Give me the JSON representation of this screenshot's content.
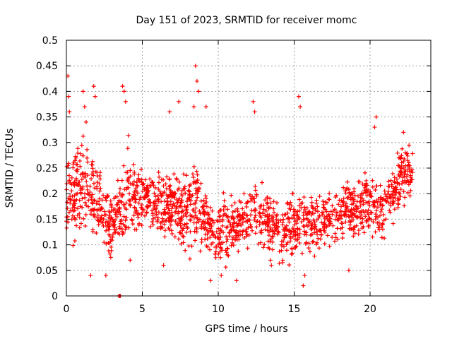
{
  "chart_data": {
    "type": "scatter",
    "title": "Day 151 of 2023, SRMTID for receiver momc",
    "xlabel": "GPS time / hours",
    "ylabel": "SRMTID / TECUs",
    "xlim": [
      0,
      24
    ],
    "ylim": [
      0,
      0.5
    ],
    "x_ticks": [
      0,
      5,
      10,
      15,
      20
    ],
    "y_ticks": [
      0,
      0.05,
      0.1,
      0.15,
      0.2,
      0.25,
      0.3,
      0.35,
      0.4,
      0.45,
      0.5
    ],
    "x_tick_labels": [
      "0",
      "5",
      "10",
      "15",
      "20"
    ],
    "y_tick_labels": [
      "0",
      "0.05",
      "0.1",
      "0.15",
      "0.2",
      "0.25",
      "0.3",
      "0.35",
      "0.4",
      "0.45",
      "0.5"
    ],
    "grid": true,
    "marker": "+",
    "color": "#ff0000",
    "sample_count": 1700,
    "x_extent": [
      0,
      22.8
    ],
    "envelope": {
      "hours": [
        0,
        0.5,
        1,
        1.5,
        2,
        2.5,
        3,
        3.5,
        4,
        4.5,
        5,
        5.5,
        6,
        6.5,
        7,
        7.5,
        8,
        8.5,
        9,
        9.5,
        10,
        10.5,
        11,
        11.5,
        12,
        12.5,
        13,
        13.5,
        14,
        14.5,
        15,
        15.5,
        16,
        16.5,
        17,
        17.5,
        18,
        18.5,
        19,
        19.5,
        20,
        20.5,
        21,
        21.5,
        22,
        22.5,
        22.8
      ],
      "median": [
        0.2,
        0.19,
        0.2,
        0.22,
        0.18,
        0.16,
        0.13,
        0.17,
        0.21,
        0.2,
        0.19,
        0.19,
        0.18,
        0.17,
        0.18,
        0.17,
        0.17,
        0.19,
        0.16,
        0.13,
        0.12,
        0.13,
        0.14,
        0.14,
        0.15,
        0.17,
        0.15,
        0.14,
        0.13,
        0.12,
        0.14,
        0.15,
        0.14,
        0.14,
        0.15,
        0.16,
        0.16,
        0.17,
        0.17,
        0.18,
        0.18,
        0.17,
        0.18,
        0.2,
        0.23,
        0.25,
        0.24
      ],
      "spread": [
        0.08,
        0.07,
        0.09,
        0.09,
        0.07,
        0.06,
        0.06,
        0.05,
        0.09,
        0.06,
        0.05,
        0.05,
        0.05,
        0.05,
        0.06,
        0.06,
        0.06,
        0.08,
        0.05,
        0.05,
        0.05,
        0.05,
        0.05,
        0.05,
        0.05,
        0.06,
        0.05,
        0.05,
        0.05,
        0.05,
        0.06,
        0.05,
        0.05,
        0.04,
        0.04,
        0.05,
        0.05,
        0.05,
        0.05,
        0.05,
        0.05,
        0.05,
        0.05,
        0.05,
        0.05,
        0.05,
        0.05
      ]
    },
    "peak_points": [
      {
        "x": 0.1,
        "y": 0.43
      },
      {
        "x": 0.15,
        "y": 0.39
      },
      {
        "x": 0.2,
        "y": 0.36
      },
      {
        "x": 1.1,
        "y": 0.4
      },
      {
        "x": 1.2,
        "y": 0.37
      },
      {
        "x": 1.3,
        "y": 0.34
      },
      {
        "x": 1.8,
        "y": 0.41
      },
      {
        "x": 1.9,
        "y": 0.39
      },
      {
        "x": 3.7,
        "y": 0.41
      },
      {
        "x": 3.8,
        "y": 0.4
      },
      {
        "x": 3.9,
        "y": 0.38
      },
      {
        "x": 6.8,
        "y": 0.36
      },
      {
        "x": 7.4,
        "y": 0.38
      },
      {
        "x": 8.5,
        "y": 0.45
      },
      {
        "x": 8.6,
        "y": 0.42
      },
      {
        "x": 8.7,
        "y": 0.4
      },
      {
        "x": 8.4,
        "y": 0.37
      },
      {
        "x": 9.2,
        "y": 0.37
      },
      {
        "x": 12.3,
        "y": 0.38
      },
      {
        "x": 12.4,
        "y": 0.36
      },
      {
        "x": 15.3,
        "y": 0.39
      },
      {
        "x": 15.4,
        "y": 0.37
      },
      {
        "x": 20.4,
        "y": 0.35
      },
      {
        "x": 20.3,
        "y": 0.33
      },
      {
        "x": 22.2,
        "y": 0.32
      }
    ],
    "low_points": [
      {
        "x": 3.5,
        "y": 0.0
      },
      {
        "x": 3.55,
        "y": 0.0
      },
      {
        "x": 3.45,
        "y": 0.0
      },
      {
        "x": 2.6,
        "y": 0.04
      },
      {
        "x": 1.6,
        "y": 0.04
      },
      {
        "x": 9.5,
        "y": 0.03
      },
      {
        "x": 10.2,
        "y": 0.04
      },
      {
        "x": 11.2,
        "y": 0.03
      },
      {
        "x": 15.6,
        "y": 0.02
      },
      {
        "x": 15.7,
        "y": 0.04
      },
      {
        "x": 18.6,
        "y": 0.05
      },
      {
        "x": 4.2,
        "y": 0.07
      },
      {
        "x": 6.4,
        "y": 0.06
      },
      {
        "x": 13.5,
        "y": 0.06
      }
    ]
  }
}
